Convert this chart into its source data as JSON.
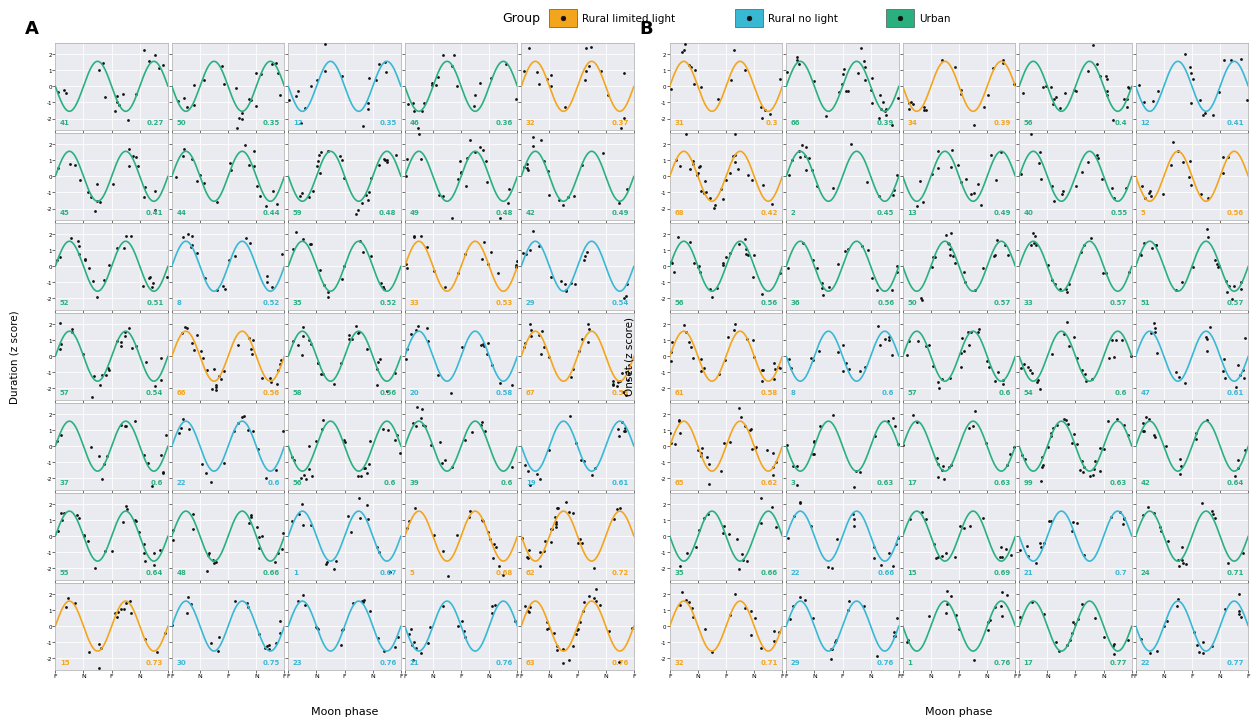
{
  "panel_A_subplots": [
    {
      "n": 41,
      "r": 0.27,
      "color": "#2ab07f",
      "phase": 3.14
    },
    {
      "n": 50,
      "r": 0.35,
      "color": "#2ab07f",
      "phase": 3.14
    },
    {
      "n": 12,
      "r": 0.35,
      "color": "#39b8d4",
      "phase": 3.14
    },
    {
      "n": 46,
      "r": 0.36,
      "color": "#2ab07f",
      "phase": 3.14
    },
    {
      "n": 32,
      "r": 0.37,
      "color": "#f4a51e",
      "phase": 0.0
    },
    {
      "n": 45,
      "r": 0.41,
      "color": "#2ab07f",
      "phase": 0.0
    },
    {
      "n": 44,
      "r": 0.44,
      "color": "#2ab07f",
      "phase": 0.0
    },
    {
      "n": 59,
      "r": 0.48,
      "color": "#2ab07f",
      "phase": 3.14
    },
    {
      "n": 49,
      "r": 0.48,
      "color": "#2ab07f",
      "phase": 0.0
    },
    {
      "n": 42,
      "r": 0.49,
      "color": "#2ab07f",
      "phase": 0.0
    },
    {
      "n": 52,
      "r": 0.51,
      "color": "#2ab07f",
      "phase": 0.0
    },
    {
      "n": 8,
      "r": 0.52,
      "color": "#39b8d4",
      "phase": 0.0
    },
    {
      "n": 35,
      "r": 0.52,
      "color": "#2ab07f",
      "phase": 0.0
    },
    {
      "n": 33,
      "r": 0.53,
      "color": "#f4a51e",
      "phase": 0.0
    },
    {
      "n": 29,
      "r": 0.54,
      "color": "#39b8d4",
      "phase": 0.0
    },
    {
      "n": 57,
      "r": 0.54,
      "color": "#2ab07f",
      "phase": 0.0
    },
    {
      "n": 66,
      "r": 0.56,
      "color": "#f4a51e",
      "phase": 0.0
    },
    {
      "n": 58,
      "r": 0.56,
      "color": "#2ab07f",
      "phase": 0.0
    },
    {
      "n": 20,
      "r": 0.58,
      "color": "#39b8d4",
      "phase": 0.0
    },
    {
      "n": 67,
      "r": 0.59,
      "color": "#f4a51e",
      "phase": 0.0
    },
    {
      "n": 37,
      "r": 0.6,
      "color": "#2ab07f",
      "phase": 0.0
    },
    {
      "n": 22,
      "r": 0.6,
      "color": "#39b8d4",
      "phase": 0.0
    },
    {
      "n": 56,
      "r": 0.6,
      "color": "#2ab07f",
      "phase": 3.14
    },
    {
      "n": 39,
      "r": 0.6,
      "color": "#2ab07f",
      "phase": 0.0
    },
    {
      "n": 19,
      "r": 0.61,
      "color": "#39b8d4",
      "phase": 3.14
    },
    {
      "n": 55,
      "r": 0.64,
      "color": "#2ab07f",
      "phase": 0.0
    },
    {
      "n": 48,
      "r": 0.66,
      "color": "#2ab07f",
      "phase": 0.0
    },
    {
      "n": 1,
      "r": 0.67,
      "color": "#39b8d4",
      "phase": 0.0
    },
    {
      "n": 5,
      "r": 0.68,
      "color": "#f4a51e",
      "phase": 0.0
    },
    {
      "n": 62,
      "r": 0.72,
      "color": "#f4a51e",
      "phase": 3.14
    },
    {
      "n": 15,
      "r": 0.73,
      "color": "#f4a51e",
      "phase": 0.0
    },
    {
      "n": 30,
      "r": 0.75,
      "color": "#39b8d4",
      "phase": 0.0
    },
    {
      "n": 23,
      "r": 0.76,
      "color": "#39b8d4",
      "phase": 0.0
    },
    {
      "n": 21,
      "r": 0.76,
      "color": "#39b8d4",
      "phase": 3.14
    },
    {
      "n": 63,
      "r": 0.76,
      "color": "#f4a51e",
      "phase": 0.0
    }
  ],
  "panel_B_subplots": [
    {
      "n": 31,
      "r": 0.3,
      "color": "#f4a51e",
      "phase": 0.0
    },
    {
      "n": 66,
      "r": 0.39,
      "color": "#2ab07f",
      "phase": 0.0
    },
    {
      "n": 34,
      "r": 0.39,
      "color": "#f4a51e",
      "phase": 3.14
    },
    {
      "n": 56,
      "r": 0.4,
      "color": "#2ab07f",
      "phase": 0.0
    },
    {
      "n": 12,
      "r": 0.41,
      "color": "#39b8d4",
      "phase": 3.14
    },
    {
      "n": 68,
      "r": 0.42,
      "color": "#f4a51e",
      "phase": 0.0
    },
    {
      "n": 2,
      "r": 0.45,
      "color": "#2ab07f",
      "phase": 0.0
    },
    {
      "n": 13,
      "r": 0.49,
      "color": "#2ab07f",
      "phase": 3.14
    },
    {
      "n": 40,
      "r": 0.55,
      "color": "#2ab07f",
      "phase": 0.0
    },
    {
      "n": 5,
      "r": 0.56,
      "color": "#f4a51e",
      "phase": 3.14
    },
    {
      "n": 56,
      "r": 0.56,
      "color": "#2ab07f",
      "phase": 0.0
    },
    {
      "n": 36,
      "r": 0.56,
      "color": "#2ab07f",
      "phase": 0.0
    },
    {
      "n": 50,
      "r": 0.57,
      "color": "#2ab07f",
      "phase": 3.14
    },
    {
      "n": 33,
      "r": 0.57,
      "color": "#2ab07f",
      "phase": 0.0
    },
    {
      "n": 51,
      "r": 0.57,
      "color": "#2ab07f",
      "phase": 0.0
    },
    {
      "n": 61,
      "r": 0.58,
      "color": "#f4a51e",
      "phase": 0.0
    },
    {
      "n": 8,
      "r": 0.6,
      "color": "#39b8d4",
      "phase": 3.14
    },
    {
      "n": 57,
      "r": 0.6,
      "color": "#2ab07f",
      "phase": 0.0
    },
    {
      "n": 54,
      "r": 0.6,
      "color": "#2ab07f",
      "phase": 3.14
    },
    {
      "n": 47,
      "r": 0.61,
      "color": "#39b8d4",
      "phase": 0.0
    },
    {
      "n": 65,
      "r": 0.62,
      "color": "#f4a51e",
      "phase": 0.0
    },
    {
      "n": 3,
      "r": 0.63,
      "color": "#2ab07f",
      "phase": 3.14
    },
    {
      "n": 17,
      "r": 0.63,
      "color": "#2ab07f",
      "phase": 0.0
    },
    {
      "n": 99,
      "r": 0.63,
      "color": "#2ab07f",
      "phase": 3.14
    },
    {
      "n": 42,
      "r": 0.64,
      "color": "#2ab07f",
      "phase": 0.0
    },
    {
      "n": 35,
      "r": 0.66,
      "color": "#2ab07f",
      "phase": 3.14
    },
    {
      "n": 22,
      "r": 0.66,
      "color": "#39b8d4",
      "phase": 0.0
    },
    {
      "n": 15,
      "r": 0.69,
      "color": "#2ab07f",
      "phase": 0.0
    },
    {
      "n": 21,
      "r": 0.7,
      "color": "#39b8d4",
      "phase": 3.14
    },
    {
      "n": 24,
      "r": 0.71,
      "color": "#2ab07f",
      "phase": 0.0
    },
    {
      "n": 32,
      "r": 0.71,
      "color": "#f4a51e",
      "phase": 0.0
    },
    {
      "n": 29,
      "r": 0.76,
      "color": "#39b8d4",
      "phase": 0.0
    },
    {
      "n": 1,
      "r": 0.76,
      "color": "#2ab07f",
      "phase": 3.14
    },
    {
      "n": 17,
      "r": 0.77,
      "color": "#2ab07f",
      "phase": 0.0
    },
    {
      "n": 22,
      "r": 0.77,
      "color": "#39b8d4",
      "phase": 3.14
    }
  ],
  "n_rows": 7,
  "n_cols": 5,
  "bg_color": "#eaebf0",
  "grid_color": "#ffffff",
  "color_rural_limited": "#f4a51e",
  "color_rural_no": "#39b8d4",
  "color_urban": "#2ab07f",
  "ylim": [
    -2.7,
    2.7
  ],
  "yticks": [
    -2,
    -1,
    0,
    1,
    2
  ],
  "xtick_labels": [
    "F",
    "N",
    "F",
    "N",
    "F"
  ],
  "legend_label_rural_limited": "Rural limited light",
  "legend_label_rural_no": "Rural no light",
  "legend_label_urban": "Urban",
  "legend_group_label": "Group",
  "panel_A_label": "A",
  "panel_B_label": "B",
  "ylabel_A": "Duration (z score)",
  "ylabel_B": "Onset (z score)",
  "xlabel": "Moon phase"
}
